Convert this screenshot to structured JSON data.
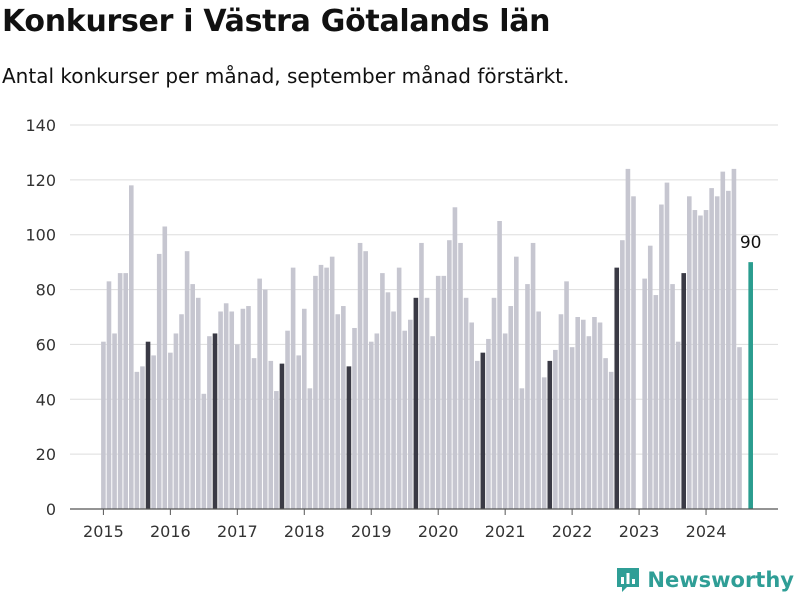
{
  "header": {
    "title": "Konkurser i Västra Götalands län",
    "subtitle": "Antal konkurser per månad, september månad förstärkt."
  },
  "brand": {
    "name": "Newsworthy",
    "icon": "newsworthy-logo-icon",
    "color": "#2f9e96"
  },
  "colors": {
    "bar": "#c6c6d0",
    "highlight": "#3a3a45",
    "latest": "#2a9d8f",
    "grid": "#dddddd",
    "axis": "#555555"
  },
  "chart_data": {
    "type": "bar",
    "title": "Konkurser i Västra Götalands län",
    "subtitle": "Antal konkurser per månad, september månad förstärkt.",
    "xlabel": "",
    "ylabel": "",
    "ylim": [
      0,
      140
    ],
    "yticks": [
      0,
      20,
      40,
      60,
      80,
      100,
      120,
      140
    ],
    "grid": true,
    "x_tick_labels": [
      "2015",
      "2016",
      "2017",
      "2018",
      "2019",
      "2020",
      "2021",
      "2022",
      "2023",
      "2024"
    ],
    "start": "2015-01",
    "end": "2024-09",
    "highlight_month": "september",
    "latest_label": "90",
    "values": [
      61,
      83,
      64,
      86,
      86,
      118,
      50,
      52,
      61,
      56,
      93,
      103,
      57,
      64,
      71,
      94,
      82,
      77,
      42,
      63,
      64,
      72,
      75,
      72,
      60,
      73,
      74,
      55,
      84,
      80,
      54,
      43,
      53,
      65,
      88,
      56,
      73,
      44,
      85,
      89,
      88,
      92,
      71,
      74,
      52,
      66,
      97,
      94,
      61,
      64,
      86,
      79,
      72,
      88,
      65,
      69,
      77,
      97,
      77,
      63,
      85,
      85,
      98,
      110,
      97,
      77,
      68,
      54,
      57,
      62,
      77,
      105,
      64,
      74,
      92,
      44,
      82,
      97,
      72,
      48,
      54,
      58,
      71,
      83,
      59,
      70,
      69,
      63,
      70,
      68,
      55,
      50,
      88,
      98,
      124,
      114,
      0,
      84,
      96,
      78,
      111,
      119,
      82,
      61,
      86,
      114,
      109,
      107,
      109,
      117,
      114,
      123,
      116,
      124,
      59,
      0,
      90
    ]
  }
}
